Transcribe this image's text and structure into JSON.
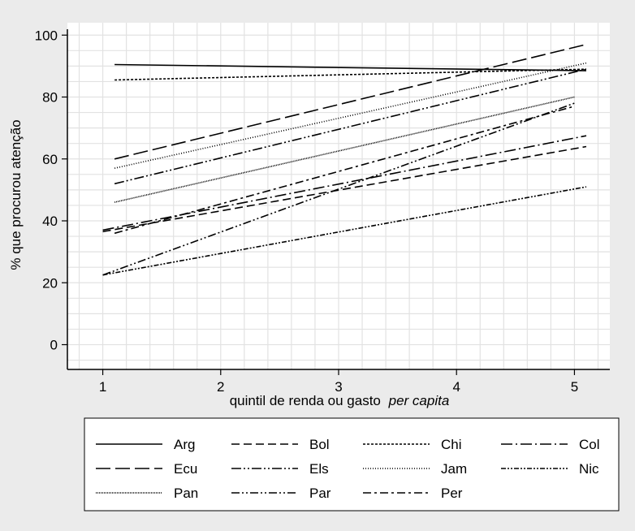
{
  "chart_data": {
    "type": "line",
    "xlabel": "quintil de renda ou gasto",
    "xlabel_italic": "per capita",
    "ylabel": "% que procurou atenção",
    "xlim": [
      0.7,
      5.3
    ],
    "ylim": [
      -8,
      104
    ],
    "x_ticks": [
      1,
      2,
      3,
      4,
      5
    ],
    "y_ticks": [
      0,
      20,
      40,
      60,
      80,
      100
    ],
    "grid": true,
    "legend_position": "bottom",
    "series": [
      {
        "name": "Arg",
        "dash": "",
        "x": [
          1.1,
          5.1
        ],
        "y": [
          90.5,
          88.5
        ]
      },
      {
        "name": "Bol",
        "dash": "10 5",
        "x": [
          1.0,
          5.1
        ],
        "y": [
          36.5,
          64
        ]
      },
      {
        "name": "Chi",
        "dash": "3 2",
        "x": [
          1.1,
          5.1
        ],
        "y": [
          85.5,
          89
        ]
      },
      {
        "name": "Col",
        "dash": "14 4 2 4",
        "x": [
          1.0,
          5.1
        ],
        "y": [
          37,
          67.5
        ]
      },
      {
        "name": "Ecu",
        "dash": "18 6",
        "x": [
          1.1,
          5.1
        ],
        "y": [
          60,
          97
        ]
      },
      {
        "name": "Els",
        "dash": "12 3 2 3 2 3",
        "x": [
          1.1,
          5.1
        ],
        "y": [
          52,
          89
        ]
      },
      {
        "name": "Jam",
        "dash": "1 2",
        "x": [
          1.1,
          5.1
        ],
        "y": [
          57,
          91
        ]
      },
      {
        "name": "Nic",
        "dash": "6 2 2 2 2 2",
        "x": [
          1.0,
          5.1
        ],
        "y": [
          22.5,
          51
        ]
      },
      {
        "name": "Pan",
        "dash": "1 1",
        "x": [
          1.1,
          5.0
        ],
        "y": [
          46,
          80
        ]
      },
      {
        "name": "Par",
        "dash": "10 3 2 3 2 3",
        "x": [
          1.0,
          5.0
        ],
        "y": [
          22.5,
          78
        ]
      },
      {
        "name": "Per",
        "dash": "10 4 3 4",
        "x": [
          1.1,
          5.0
        ],
        "y": [
          36,
          77
        ]
      }
    ]
  }
}
